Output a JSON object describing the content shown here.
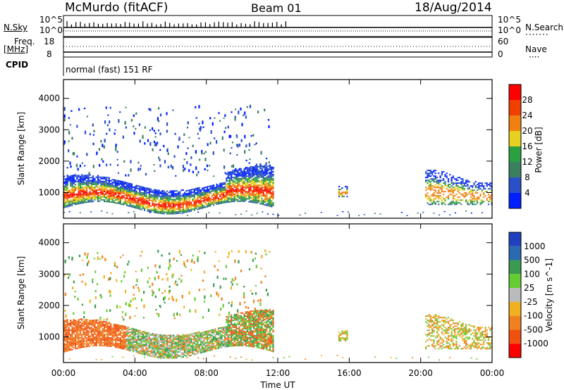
{
  "header": {
    "station": "McMurdo (fitACF)",
    "beam": "Beam 01",
    "date": "18/Aug/2014"
  },
  "status_panels": {
    "nsky_label": "N.Sky",
    "nsearch_label": "N.Search",
    "nsky_ticks": [
      "10^5",
      "10^0"
    ],
    "nsearch_ticks": [
      "10^5",
      "10^0"
    ],
    "freq_label_top": "Freq.",
    "freq_label_bottom": "[MHz]",
    "freq_ticks": [
      "18",
      "8"
    ],
    "nave_label": "Nave",
    "nave_ticks": [
      "60",
      "0"
    ],
    "cpid_label": "CPID",
    "cpid_value": "normal (fast) 151 RF"
  },
  "chart_data": [
    {
      "type": "heatmap",
      "name": "power",
      "ylabel": "Slant Range [km]",
      "y_ticks": [
        1000,
        2000,
        3000,
        4000
      ],
      "ylim": [
        180,
        4600
      ],
      "xlim_hours": [
        0,
        24
      ],
      "colorbar": {
        "label": "Power [dB]",
        "ticks": [
          "4",
          "8",
          "12",
          "16",
          "20",
          "24",
          "28"
        ],
        "colors": [
          "#0020ff",
          "#2a50c8",
          "#3a8060",
          "#2aa040",
          "#e8d020",
          "#f08010",
          "#f04000",
          "#ff0000"
        ]
      }
    },
    {
      "type": "heatmap",
      "name": "velocity",
      "ylabel": "Slant Range [km]",
      "y_ticks": [
        1000,
        2000,
        3000,
        4000
      ],
      "ylim": [
        180,
        4600
      ],
      "xlim_hours": [
        0,
        24
      ],
      "xlabel": "Time UT",
      "x_ticks": [
        "00:00",
        "04:00",
        "08:00",
        "12:00",
        "16:00",
        "20:00",
        "00:00"
      ],
      "colorbar": {
        "label": "Velocity [m s^-1]",
        "ticks": [
          "1000",
          "500",
          "100",
          "25",
          "-25",
          "-100",
          "-500",
          "-1000"
        ],
        "colors": [
          "#2040c0",
          "#2a6ab0",
          "#3a9a50",
          "#66cc33",
          "#bbbbbb",
          "#f0b020",
          "#f08020",
          "#f05010",
          "#ff0000"
        ]
      }
    }
  ]
}
